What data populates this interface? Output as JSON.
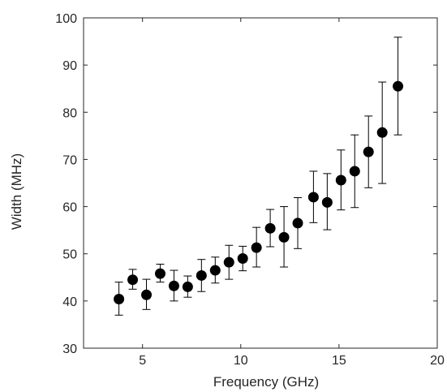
{
  "chart_data": {
    "type": "scatter",
    "title": "",
    "xlabel": "Frequency (GHz)",
    "ylabel": "Width (MHz)",
    "xlim": [
      2,
      20
    ],
    "ylim": [
      30,
      100
    ],
    "xticks": [
      5,
      10,
      15,
      20
    ],
    "yticks": [
      30,
      40,
      50,
      60,
      70,
      80,
      90,
      100
    ],
    "grid": false,
    "marker_color": "#000000",
    "series": [
      {
        "x": [
          3.8,
          4.5,
          5.2,
          5.9,
          6.6,
          7.3,
          8.0,
          8.7,
          9.4,
          10.1,
          10.8,
          11.5,
          12.2,
          12.9,
          13.7,
          14.4,
          15.1,
          15.8,
          16.5,
          17.2,
          18.0
        ],
        "y": [
          40.4,
          44.5,
          41.3,
          45.8,
          43.2,
          43.0,
          45.4,
          46.5,
          48.2,
          49.0,
          51.3,
          55.4,
          53.5,
          56.5,
          62.0,
          60.9,
          65.6,
          67.5,
          71.6,
          75.7,
          85.5
        ],
        "y_low": [
          37.0,
          42.5,
          38.2,
          44.0,
          40.0,
          40.8,
          42.0,
          43.8,
          44.6,
          46.4,
          47.2,
          51.5,
          47.2,
          51.1,
          56.6,
          55.1,
          59.3,
          59.8,
          64.0,
          64.9,
          75.2
        ],
        "y_high": [
          44.0,
          46.7,
          44.6,
          47.8,
          46.5,
          45.3,
          48.8,
          49.3,
          51.8,
          51.6,
          55.6,
          59.4,
          60.0,
          61.9,
          67.5,
          67.0,
          72.0,
          75.2,
          79.2,
          86.4,
          95.9
        ]
      }
    ]
  }
}
